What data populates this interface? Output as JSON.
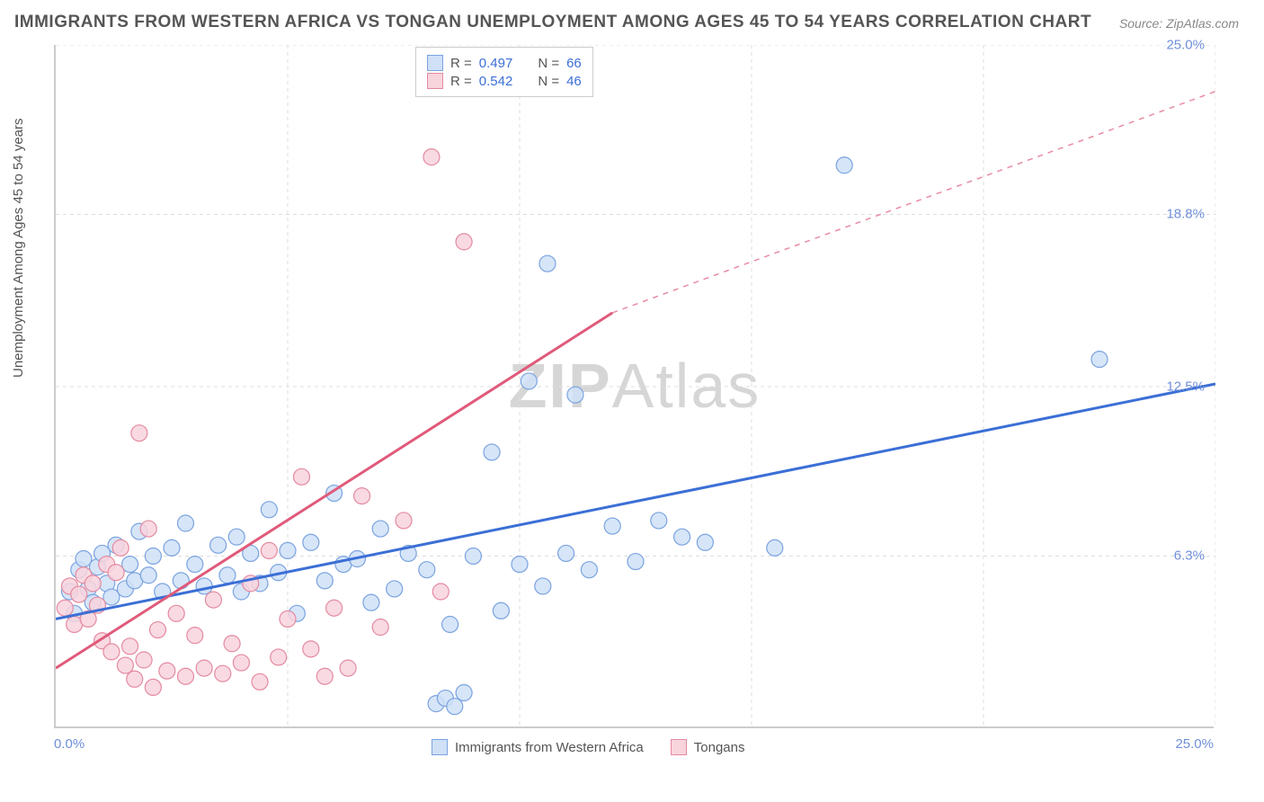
{
  "title": "IMMIGRANTS FROM WESTERN AFRICA VS TONGAN UNEMPLOYMENT AMONG AGES 45 TO 54 YEARS CORRELATION CHART",
  "source": "Source: ZipAtlas.com",
  "watermark_a": "ZIP",
  "watermark_b": "Atlas",
  "y_axis_label": "Unemployment Among Ages 45 to 54 years",
  "chart": {
    "type": "scatter",
    "xlim": [
      0,
      25
    ],
    "ylim": [
      0,
      25
    ],
    "yticks": [
      6.3,
      12.5,
      18.8,
      25.0
    ],
    "ytick_labels": [
      "6.3%",
      "12.5%",
      "18.8%",
      "25.0%"
    ],
    "xticks_minor": [
      5,
      10,
      15,
      20,
      25
    ],
    "x_tick_left": "0.0%",
    "x_tick_right": "25.0%",
    "grid_color": "#dddddd",
    "background": "#ffffff",
    "marker_radius": 9,
    "marker_stroke_width": 1.2,
    "trend_line_width": 3
  },
  "legend_top": {
    "rows": [
      {
        "swatch_fill": "#cfe0f7",
        "swatch_stroke": "#7aa3e0",
        "r_label": "R =",
        "r_value": "0.497",
        "n_label": "N =",
        "n_value": "66"
      },
      {
        "swatch_fill": "#f8d4dd",
        "swatch_stroke": "#e48aa0",
        "r_label": "R =",
        "r_value": "0.542",
        "n_label": "N =",
        "n_value": "46"
      }
    ]
  },
  "legend_bottom": {
    "items": [
      {
        "swatch_fill": "#cfe0f7",
        "swatch_stroke": "#7aa3e0",
        "label": "Immigrants from Western Africa"
      },
      {
        "swatch_fill": "#f8d4dd",
        "swatch_stroke": "#e48aa0",
        "label": "Tongans"
      }
    ]
  },
  "series": [
    {
      "name": "Immigrants from Western Africa",
      "fill": "#cfe0f7",
      "stroke": "#7aa3e0",
      "trend_color": "#3b6fd6",
      "trend": {
        "x1": 0,
        "y1": 4.0,
        "x2": 25,
        "y2": 12.6
      },
      "points": [
        [
          0.3,
          5.0
        ],
        [
          0.4,
          4.2
        ],
        [
          0.5,
          5.8
        ],
        [
          0.6,
          6.2
        ],
        [
          0.7,
          5.1
        ],
        [
          0.8,
          4.6
        ],
        [
          0.9,
          5.9
        ],
        [
          1.0,
          6.4
        ],
        [
          1.1,
          5.3
        ],
        [
          1.2,
          4.8
        ],
        [
          1.3,
          6.7
        ],
        [
          1.5,
          5.1
        ],
        [
          1.6,
          6.0
        ],
        [
          1.7,
          5.4
        ],
        [
          1.8,
          7.2
        ],
        [
          2.0,
          5.6
        ],
        [
          2.1,
          6.3
        ],
        [
          2.3,
          5.0
        ],
        [
          2.5,
          6.6
        ],
        [
          2.7,
          5.4
        ],
        [
          2.8,
          7.5
        ],
        [
          3.0,
          6.0
        ],
        [
          3.2,
          5.2
        ],
        [
          3.5,
          6.7
        ],
        [
          3.7,
          5.6
        ],
        [
          3.9,
          7.0
        ],
        [
          4.0,
          5.0
        ],
        [
          4.2,
          6.4
        ],
        [
          4.4,
          5.3
        ],
        [
          4.6,
          8.0
        ],
        [
          4.8,
          5.7
        ],
        [
          5.0,
          6.5
        ],
        [
          5.2,
          4.2
        ],
        [
          5.5,
          6.8
        ],
        [
          5.8,
          5.4
        ],
        [
          6.0,
          8.6
        ],
        [
          6.2,
          6.0
        ],
        [
          6.5,
          6.2
        ],
        [
          6.8,
          4.6
        ],
        [
          7.0,
          7.3
        ],
        [
          7.3,
          5.1
        ],
        [
          7.6,
          6.4
        ],
        [
          8.0,
          5.8
        ],
        [
          8.2,
          0.9
        ],
        [
          8.4,
          1.1
        ],
        [
          8.5,
          3.8
        ],
        [
          9.0,
          6.3
        ],
        [
          9.4,
          10.1
        ],
        [
          9.6,
          4.3
        ],
        [
          10.0,
          6.0
        ],
        [
          10.2,
          12.7
        ],
        [
          10.5,
          5.2
        ],
        [
          10.6,
          17.0
        ],
        [
          11.0,
          6.4
        ],
        [
          11.2,
          12.2
        ],
        [
          11.5,
          5.8
        ],
        [
          12.0,
          7.4
        ],
        [
          12.5,
          6.1
        ],
        [
          13.0,
          7.6
        ],
        [
          13.5,
          7.0
        ],
        [
          14.0,
          6.8
        ],
        [
          15.5,
          6.6
        ],
        [
          17.0,
          20.6
        ],
        [
          22.5,
          13.5
        ],
        [
          8.6,
          0.8
        ],
        [
          8.8,
          1.3
        ]
      ]
    },
    {
      "name": "Tongans",
      "fill": "#f8d4dd",
      "stroke": "#e48aa0",
      "trend_color": "#e05a7a",
      "trend": {
        "x1": 0,
        "y1": 2.2,
        "x2": 12,
        "y2": 15.2
      },
      "trend_dashed_extension": {
        "x1": 12,
        "y1": 15.2,
        "x2": 25,
        "y2": 23.3
      },
      "points": [
        [
          0.2,
          4.4
        ],
        [
          0.3,
          5.2
        ],
        [
          0.4,
          3.8
        ],
        [
          0.5,
          4.9
        ],
        [
          0.6,
          5.6
        ],
        [
          0.7,
          4.0
        ],
        [
          0.8,
          5.3
        ],
        [
          0.9,
          4.5
        ],
        [
          1.0,
          3.2
        ],
        [
          1.1,
          6.0
        ],
        [
          1.2,
          2.8
        ],
        [
          1.3,
          5.7
        ],
        [
          1.4,
          6.6
        ],
        [
          1.5,
          2.3
        ],
        [
          1.6,
          3.0
        ],
        [
          1.7,
          1.8
        ],
        [
          1.8,
          10.8
        ],
        [
          1.9,
          2.5
        ],
        [
          2.0,
          7.3
        ],
        [
          2.1,
          1.5
        ],
        [
          2.2,
          3.6
        ],
        [
          2.4,
          2.1
        ],
        [
          2.6,
          4.2
        ],
        [
          2.8,
          1.9
        ],
        [
          3.0,
          3.4
        ],
        [
          3.2,
          2.2
        ],
        [
          3.4,
          4.7
        ],
        [
          3.6,
          2.0
        ],
        [
          3.8,
          3.1
        ],
        [
          4.0,
          2.4
        ],
        [
          4.2,
          5.3
        ],
        [
          4.4,
          1.7
        ],
        [
          4.6,
          6.5
        ],
        [
          4.8,
          2.6
        ],
        [
          5.0,
          4.0
        ],
        [
          5.3,
          9.2
        ],
        [
          5.5,
          2.9
        ],
        [
          5.8,
          1.9
        ],
        [
          6.0,
          4.4
        ],
        [
          6.3,
          2.2
        ],
        [
          6.6,
          8.5
        ],
        [
          7.0,
          3.7
        ],
        [
          7.5,
          7.6
        ],
        [
          8.1,
          20.9
        ],
        [
          8.8,
          17.8
        ],
        [
          8.3,
          5.0
        ]
      ]
    }
  ]
}
